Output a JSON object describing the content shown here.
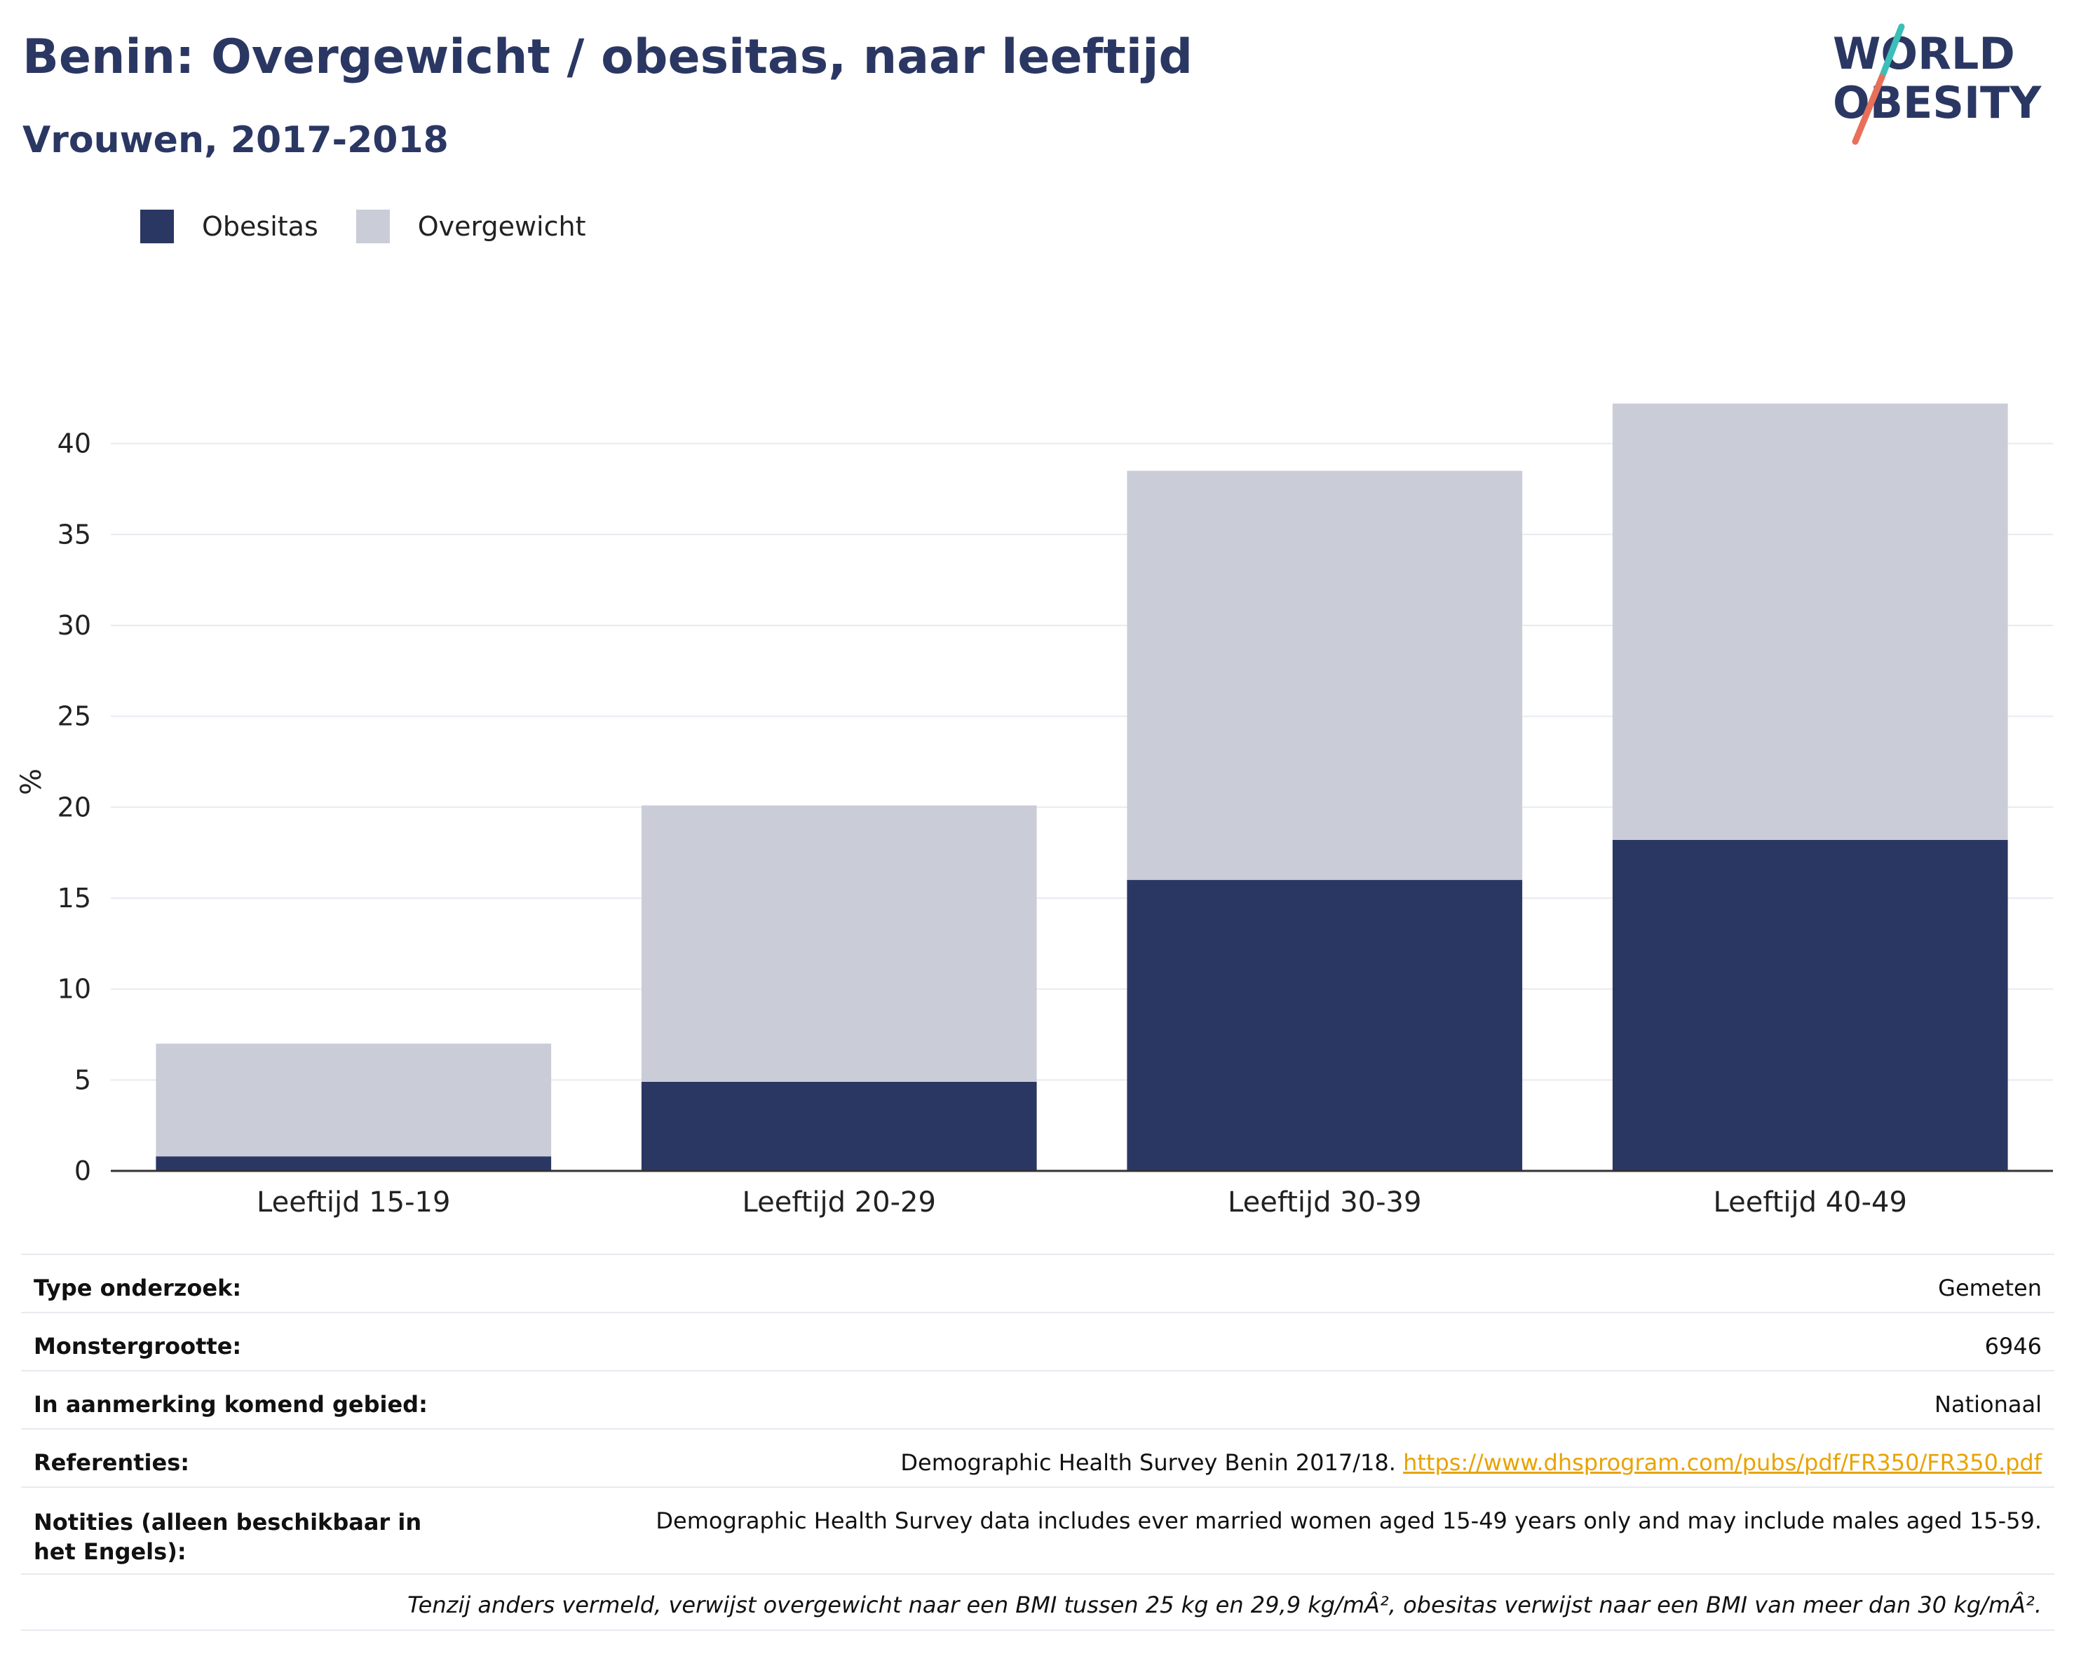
{
  "header": {
    "title": "Benin: Overgewicht / obesitas, naar leeftijd",
    "subtitle": "Vrouwen, 2017-2018"
  },
  "logo": {
    "line1": "WORLD",
    "line2": "OBESITY",
    "colors": {
      "text": "#2b3763",
      "slash_top": "#3bbfb8",
      "slash_bottom": "#e8705a"
    }
  },
  "legend": {
    "items": [
      {
        "label": "Obesitas",
        "color": "#2b3763"
      },
      {
        "label": "Overgewicht",
        "color": "#cacdd8"
      }
    ]
  },
  "chart_data": {
    "type": "bar",
    "stacked": true,
    "categories": [
      "Leeftijd 15-19",
      "Leeftijd 20-29",
      "Leeftijd 30-39",
      "Leeftijd 40-49"
    ],
    "series": [
      {
        "name": "Obesitas",
        "color": "#2b3763",
        "values": [
          0.8,
          4.9,
          16.0,
          18.2
        ]
      },
      {
        "name": "Overgewicht",
        "color": "#cacdd8",
        "values": [
          6.2,
          15.2,
          22.5,
          24.0
        ]
      }
    ],
    "ylabel": "%",
    "yticks": [
      0,
      5,
      10,
      15,
      20,
      25,
      30,
      35,
      40
    ],
    "ylim": [
      0,
      42.8
    ],
    "grid": true,
    "legend_position": "top-left"
  },
  "info": {
    "rows": [
      {
        "key": "Type onderzoek:",
        "value": "Gemeten"
      },
      {
        "key": "Monstergrootte:",
        "value": "6946"
      },
      {
        "key": "In aanmerking komend gebied:",
        "value": "Nationaal"
      },
      {
        "key": "Referenties:",
        "value": "Demographic Health Survey Benin 2017/18.",
        "link": "https://www.dhsprogram.com/pubs/pdf/FR350/FR350.pdf"
      },
      {
        "key": "Notities (alleen beschikbaar in het Engels):",
        "value": "Demographic Health Survey data includes ever married women aged 15-49 years only and may include males aged 15-59."
      }
    ],
    "footnote": "Tenzij anders vermeld, verwijst overgewicht naar een BMI tussen 25 kg en 29,9 kg/mÂ², obesitas verwijst naar een BMI van meer dan 30 kg/mÂ²."
  }
}
